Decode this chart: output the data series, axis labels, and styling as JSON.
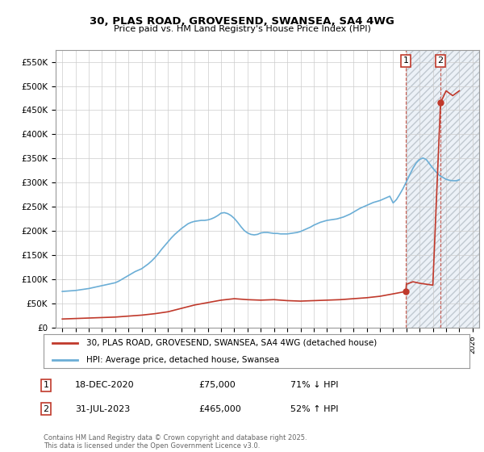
{
  "title": "30, PLAS ROAD, GROVESEND, SWANSEA, SA4 4WG",
  "subtitle": "Price paid vs. HM Land Registry's House Price Index (HPI)",
  "ylim": [
    0,
    575000
  ],
  "xlim": [
    1994.5,
    2026.5
  ],
  "yticks": [
    0,
    50000,
    100000,
    150000,
    200000,
    250000,
    300000,
    350000,
    400000,
    450000,
    500000,
    550000
  ],
  "ytick_labels": [
    "£0",
    "£50K",
    "£100K",
    "£150K",
    "£200K",
    "£250K",
    "£300K",
    "£350K",
    "£400K",
    "£450K",
    "£500K",
    "£550K"
  ],
  "xticks": [
    1995,
    1996,
    1997,
    1998,
    1999,
    2000,
    2001,
    2002,
    2003,
    2004,
    2005,
    2006,
    2007,
    2008,
    2009,
    2010,
    2011,
    2012,
    2013,
    2014,
    2015,
    2016,
    2017,
    2018,
    2019,
    2020,
    2021,
    2022,
    2023,
    2024,
    2025,
    2026
  ],
  "hpi_color": "#6baed6",
  "price_color": "#c0392b",
  "bg_color": "#ffffff",
  "grid_color": "#cccccc",
  "transaction1_date": 2020.96,
  "transaction1_price": 75000,
  "transaction2_date": 2023.58,
  "transaction2_price": 465000,
  "legend_line1": "30, PLAS ROAD, GROVESEND, SWANSEA, SA4 4WG (detached house)",
  "legend_line2": "HPI: Average price, detached house, Swansea",
  "annotation1_date": "18-DEC-2020",
  "annotation1_price": "£75,000",
  "annotation1_hpi": "71% ↓ HPI",
  "annotation2_date": "31-JUL-2023",
  "annotation2_price": "£465,000",
  "annotation2_hpi": "52% ↑ HPI",
  "footer": "Contains HM Land Registry data © Crown copyright and database right 2025.\nThis data is licensed under the Open Government Licence v3.0.",
  "hatch_zone_start": 2021.0,
  "hatch_zone_end": 2026.5,
  "hpi_data_x": [
    1995.0,
    1995.25,
    1995.5,
    1995.75,
    1996.0,
    1996.25,
    1996.5,
    1996.75,
    1997.0,
    1997.25,
    1997.5,
    1997.75,
    1998.0,
    1998.25,
    1998.5,
    1998.75,
    1999.0,
    1999.25,
    1999.5,
    1999.75,
    2000.0,
    2000.25,
    2000.5,
    2000.75,
    2001.0,
    2001.25,
    2001.5,
    2001.75,
    2002.0,
    2002.25,
    2002.5,
    2002.75,
    2003.0,
    2003.25,
    2003.5,
    2003.75,
    2004.0,
    2004.25,
    2004.5,
    2004.75,
    2005.0,
    2005.25,
    2005.5,
    2005.75,
    2006.0,
    2006.25,
    2006.5,
    2006.75,
    2007.0,
    2007.25,
    2007.5,
    2007.75,
    2008.0,
    2008.25,
    2008.5,
    2008.75,
    2009.0,
    2009.25,
    2009.5,
    2009.75,
    2010.0,
    2010.25,
    2010.5,
    2010.75,
    2011.0,
    2011.25,
    2011.5,
    2011.75,
    2012.0,
    2012.25,
    2012.5,
    2012.75,
    2013.0,
    2013.25,
    2013.5,
    2013.75,
    2014.0,
    2014.25,
    2014.5,
    2014.75,
    2015.0,
    2015.25,
    2015.5,
    2015.75,
    2016.0,
    2016.25,
    2016.5,
    2016.75,
    2017.0,
    2017.25,
    2017.5,
    2017.75,
    2018.0,
    2018.25,
    2018.5,
    2018.75,
    2019.0,
    2019.25,
    2019.5,
    2019.75,
    2020.0,
    2020.25,
    2020.5,
    2020.75,
    2021.0,
    2021.25,
    2021.5,
    2021.75,
    2022.0,
    2022.25,
    2022.5,
    2022.75,
    2023.0,
    2023.25,
    2023.5,
    2023.75,
    2024.0,
    2024.25,
    2024.5,
    2024.75,
    2025.0
  ],
  "hpi_data_y": [
    75000,
    75500,
    76000,
    76500,
    77000,
    78000,
    79000,
    80000,
    81000,
    82500,
    84000,
    85500,
    87000,
    88500,
    90000,
    91500,
    93000,
    96000,
    100000,
    104000,
    108000,
    112000,
    116000,
    119000,
    122000,
    127000,
    132000,
    138000,
    145000,
    153000,
    162000,
    170000,
    178000,
    186000,
    193000,
    199000,
    205000,
    210000,
    215000,
    218000,
    220000,
    221000,
    222000,
    222000,
    223000,
    225000,
    228000,
    232000,
    237000,
    238000,
    236000,
    232000,
    226000,
    218000,
    209000,
    201000,
    196000,
    193000,
    192000,
    193000,
    196000,
    197000,
    197000,
    196000,
    195000,
    195000,
    194000,
    194000,
    194000,
    195000,
    196000,
    197000,
    199000,
    202000,
    205000,
    208000,
    212000,
    215000,
    218000,
    220000,
    222000,
    223000,
    224000,
    225000,
    227000,
    229000,
    232000,
    235000,
    239000,
    243000,
    247000,
    250000,
    253000,
    256000,
    259000,
    261000,
    263000,
    266000,
    269000,
    272000,
    258000,
    265000,
    276000,
    288000,
    302000,
    316000,
    330000,
    341000,
    348000,
    351000,
    348000,
    339000,
    330000,
    322000,
    315000,
    311000,
    307000,
    305000,
    304000,
    304000,
    306000
  ],
  "price_line_x": [
    1995.0,
    1996.0,
    1997.0,
    1998.0,
    1999.0,
    2000.0,
    2001.0,
    2002.0,
    2003.0,
    2004.0,
    2005.0,
    2006.0,
    2007.0,
    2008.0,
    2009.0,
    2010.0,
    2011.0,
    2012.0,
    2013.0,
    2014.0,
    2015.0,
    2016.0,
    2017.0,
    2018.0,
    2019.0,
    2020.0,
    2020.96,
    2021.0,
    2021.5,
    2022.0,
    2022.5,
    2023.0,
    2023.58,
    2024.0,
    2024.5,
    2025.0
  ],
  "price_line_y": [
    18000,
    19000,
    20000,
    21000,
    22000,
    24000,
    26000,
    29000,
    33000,
    40000,
    47000,
    52000,
    57000,
    60000,
    58000,
    57000,
    58000,
    56000,
    55000,
    56000,
    57000,
    58000,
    60000,
    62000,
    65000,
    70000,
    75000,
    90000,
    95000,
    92000,
    90000,
    88000,
    465000,
    490000,
    480000,
    490000
  ]
}
